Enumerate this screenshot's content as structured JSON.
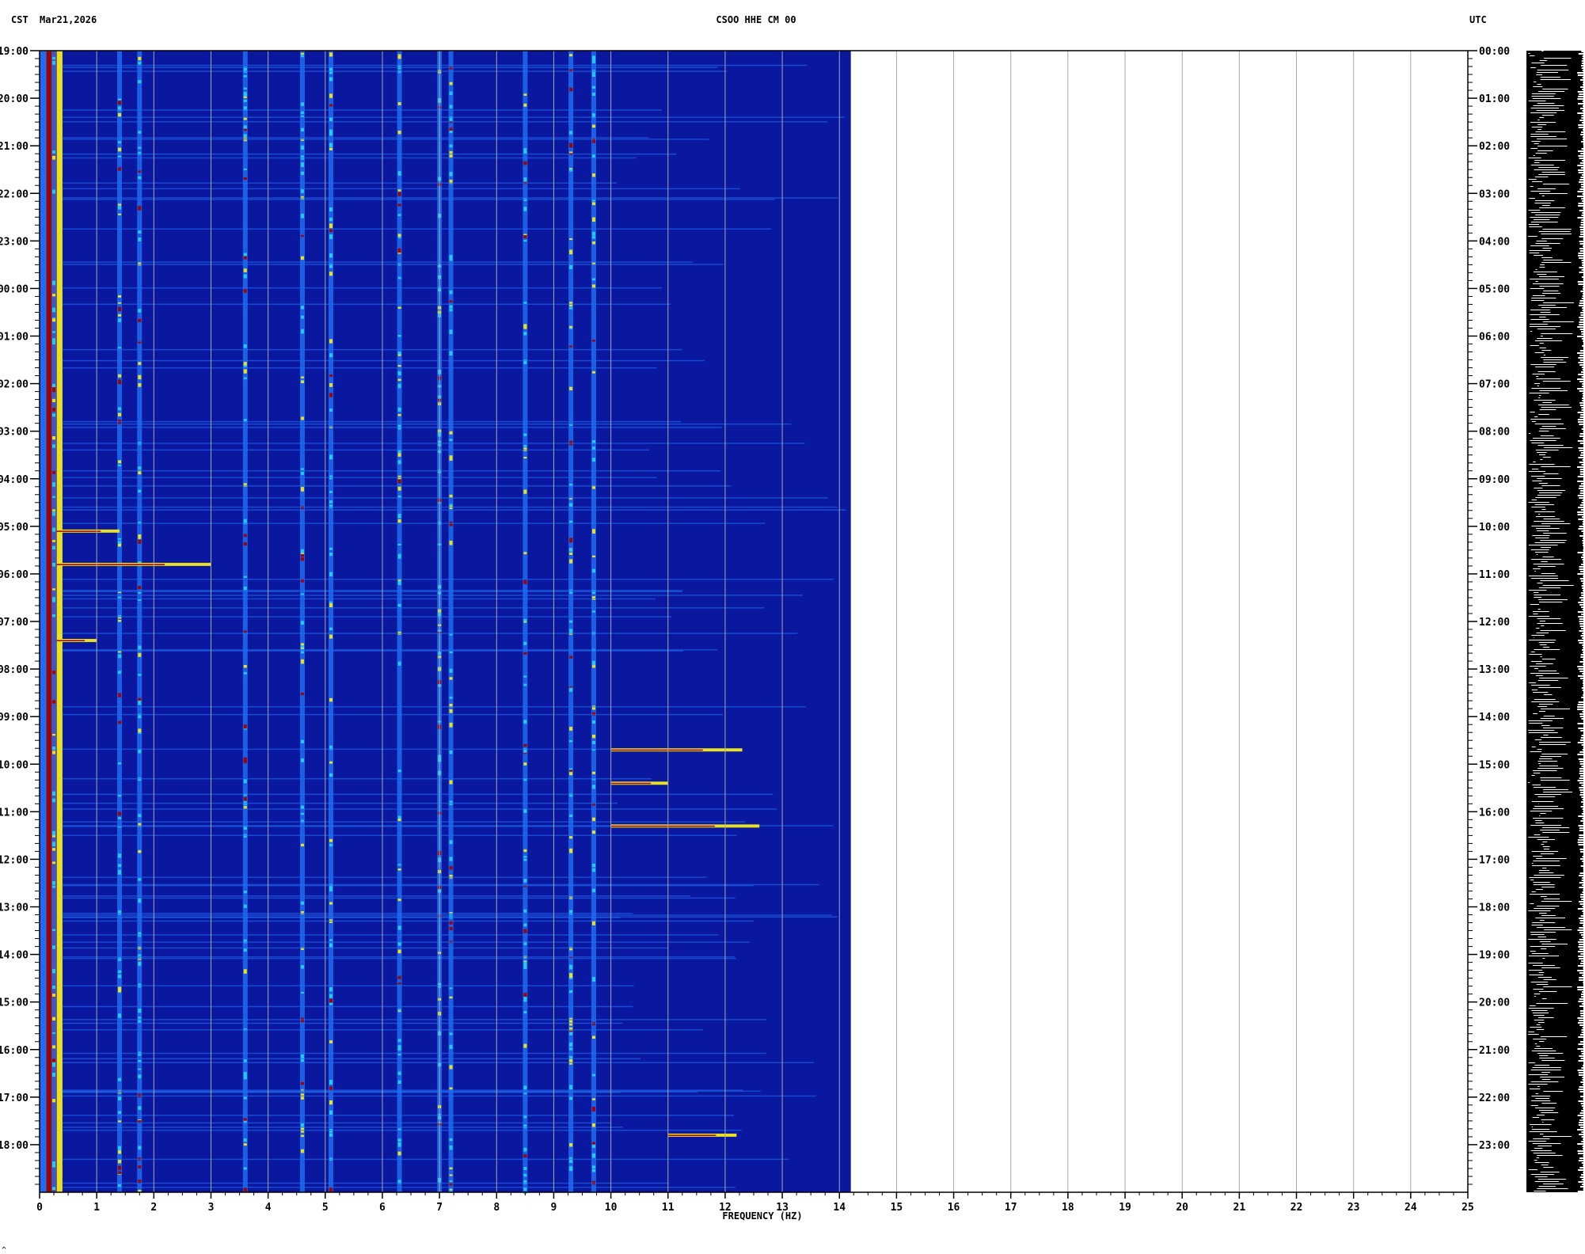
{
  "header": {
    "left_tz": "CST",
    "date": "Mar21,2026",
    "station": "CSOO HHE CM 00",
    "right_tz": "UTC"
  },
  "footer_mark": "^",
  "chart_data": {
    "type": "heatmap",
    "title": "CSOO HHE CM 00",
    "xlabel": "FREQUENCY (HZ)",
    "xlim": [
      0,
      25
    ],
    "x_ticks": [
      "0",
      "1",
      "2",
      "3",
      "4",
      "5",
      "6",
      "7",
      "8",
      "9",
      "10",
      "11",
      "12",
      "13",
      "14",
      "15",
      "16",
      "17",
      "18",
      "19",
      "20",
      "21",
      "22",
      "23",
      "24",
      "25"
    ],
    "data_xmax": 14.2,
    "y_left_label": "CST",
    "y_right_label": "UTC",
    "y_left_ticks": [
      "19:00",
      "20:00",
      "21:00",
      "22:00",
      "23:00",
      "00:00",
      "01:00",
      "02:00",
      "03:00",
      "04:00",
      "05:00",
      "06:00",
      "07:00",
      "08:00",
      "09:00",
      "10:00",
      "11:00",
      "12:00",
      "13:00",
      "14:00",
      "15:00",
      "16:00",
      "17:00",
      "18:00"
    ],
    "y_right_ticks": [
      "00:00",
      "01:00",
      "02:00",
      "03:00",
      "04:00",
      "05:00",
      "06:00",
      "07:00",
      "08:00",
      "09:00",
      "10:00",
      "11:00",
      "12:00",
      "13:00",
      "14:00",
      "15:00",
      "16:00",
      "17:00",
      "18:00",
      "19:00",
      "20:00",
      "21:00",
      "22:00",
      "23:00"
    ],
    "hours_span": 24,
    "grid": true,
    "colors": {
      "background_low": "#0a18a0",
      "mid": "#1f6cf0",
      "high": "#22c8f0",
      "peak": "#e8e020",
      "max": "#a00000",
      "grid": "#a8a8a8",
      "trace": "#000000"
    },
    "persistent_lines_hz": [
      0.25,
      1.4,
      1.75,
      3.6,
      4.6,
      5.1,
      6.3,
      7.0,
      7.2,
      8.5,
      9.3,
      9.7
    ],
    "events": [
      {
        "utc_hour": 10.1,
        "f_start": 0.3,
        "f_end": 1.4
      },
      {
        "utc_hour": 10.8,
        "f_start": 0.3,
        "f_end": 3.0
      },
      {
        "utc_hour": 12.4,
        "f_start": 0.3,
        "f_end": 1.0
      },
      {
        "utc_hour": 14.7,
        "f_start": 10.0,
        "f_end": 12.3
      },
      {
        "utc_hour": 15.4,
        "f_start": 10.0,
        "f_end": 11.0
      },
      {
        "utc_hour": 16.3,
        "f_start": 10.0,
        "f_end": 12.6
      },
      {
        "utc_hour": 22.8,
        "f_start": 11.0,
        "f_end": 12.2
      }
    ]
  }
}
